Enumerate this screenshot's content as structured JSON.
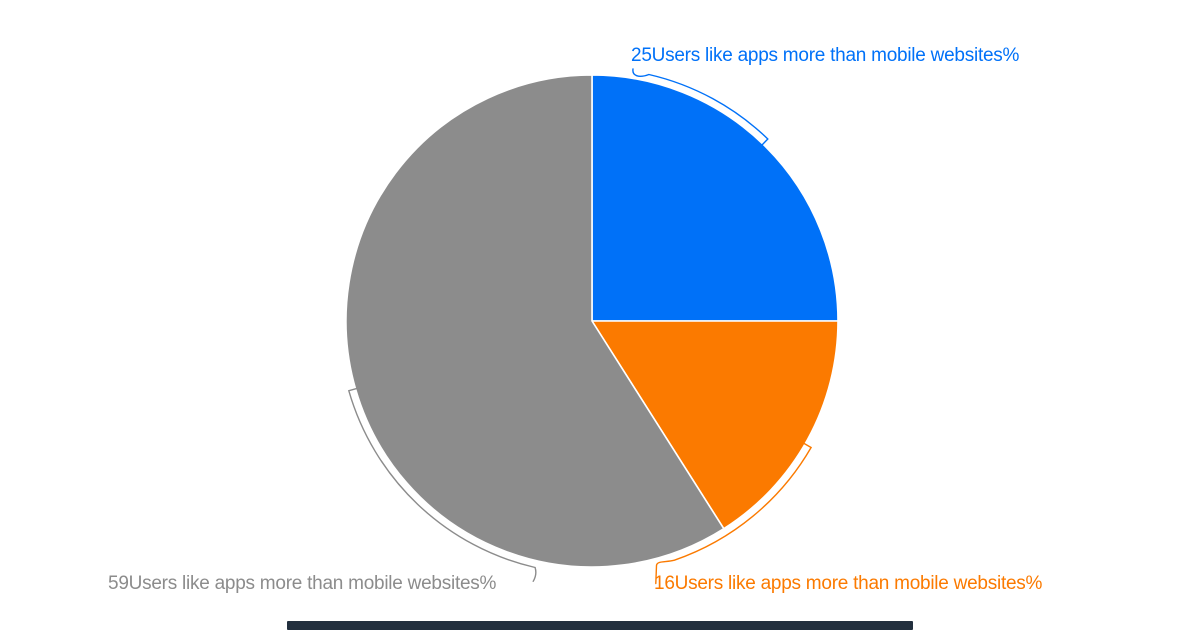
{
  "page": {
    "background": "#ffffff"
  },
  "footer_bar": {
    "color": "#222f3e"
  },
  "chart_data": {
    "type": "pie",
    "title": "",
    "unit": "%",
    "series_name": "Users like apps more than mobile websites",
    "start_angle_deg": 0,
    "direction": "clockwise",
    "labels_position": "outside-with-leader-lines",
    "legend": "none",
    "background": "#ffffff",
    "slices": [
      {
        "value": 25,
        "display_label": "25Users like apps more than mobile websites%",
        "color": "#0071f8"
      },
      {
        "value": 16,
        "display_label": "16Users like apps more than mobile websites%",
        "color": "#fb7a00"
      },
      {
        "value": 59,
        "display_label": "59Users like apps more than mobile websites%",
        "color": "#8c8c8c"
      }
    ]
  }
}
